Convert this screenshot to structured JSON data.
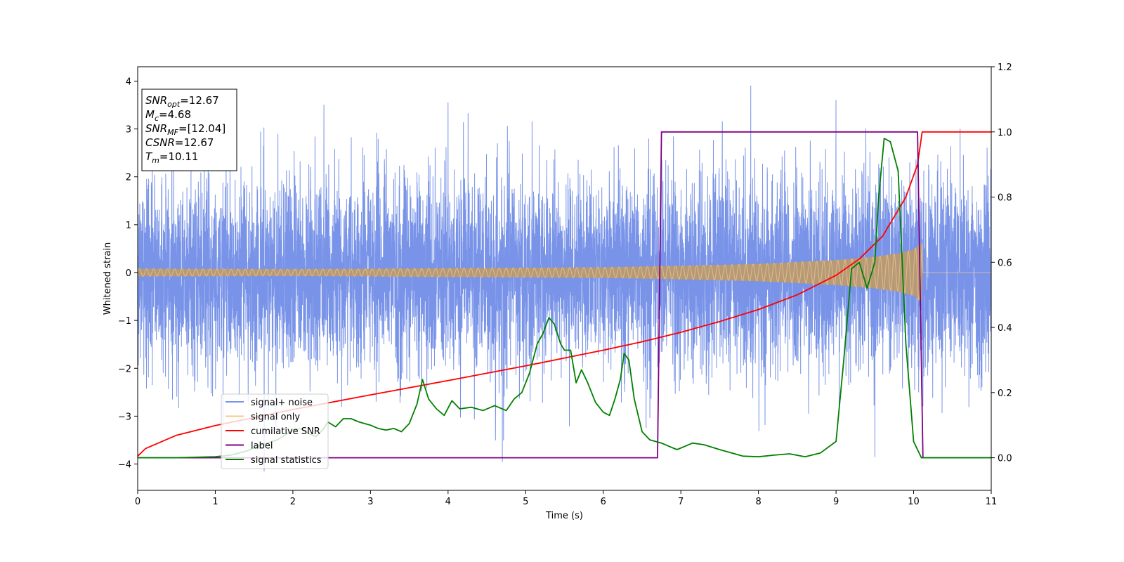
{
  "chart_data": {
    "type": "line",
    "xlabel": "Time (s)",
    "ylabel": "Whitened strain",
    "xlim": [
      0,
      11
    ],
    "ylim": [
      -4.55,
      4.3
    ],
    "y2lim": [
      -0.1,
      1.2
    ],
    "x_ticks": [
      0,
      1,
      2,
      3,
      4,
      5,
      6,
      7,
      8,
      9,
      10,
      11
    ],
    "y_ticks": [
      -4,
      -3,
      -2,
      -1,
      0,
      1,
      2,
      3,
      4
    ],
    "y2_ticks": [
      0.0,
      0.2,
      0.4,
      0.6,
      0.8,
      1.0,
      1.2
    ],
    "x_tick_labels": [
      "0",
      "1",
      "2",
      "3",
      "4",
      "5",
      "6",
      "7",
      "8",
      "9",
      "10",
      "11"
    ],
    "y_tick_labels": [
      "−4",
      "−3",
      "−2",
      "−1",
      "0",
      "1",
      "2",
      "3",
      "4"
    ],
    "y2_tick_labels": [
      "0.0",
      "0.2",
      "0.4",
      "0.6",
      "0.8",
      "1.0",
      "1.2"
    ],
    "grid": false,
    "legend_position": "lower-left",
    "info_box": [
      {
        "base": "SNR",
        "sub": "opt",
        "value": "=12.67"
      },
      {
        "base": "M",
        "sub": "c",
        "value": "=4.68"
      },
      {
        "base": "SNR",
        "sub": "MF",
        "value": "=[12.04]"
      },
      {
        "base": "CSNR",
        "sub": "",
        "value": "=12.67"
      },
      {
        "base": "T",
        "sub": "m",
        "value": "=10.11"
      }
    ],
    "series": [
      {
        "name": "signal+ noise",
        "color": "#7893e8",
        "axis": "left",
        "kind": "noise",
        "t_end": 11,
        "std": 1.0,
        "envelope_min": -3.5,
        "envelope_max": 3.6,
        "peak_points": [
          [
            1.1,
            -3.2
          ],
          [
            1.63,
            -4.15
          ],
          [
            2.4,
            3.5
          ],
          [
            4.0,
            3.55
          ],
          [
            4.7,
            -3.95
          ],
          [
            7.9,
            3.9
          ],
          [
            9.5,
            -3.85
          ],
          [
            10.6,
            3.0
          ]
        ]
      },
      {
        "name": "signal only",
        "color": "#f5c98a",
        "fill_color": "#b99a72",
        "axis": "left",
        "kind": "chirp",
        "amplitude_points": [
          [
            0,
            0.08
          ],
          [
            2,
            0.07
          ],
          [
            4,
            0.09
          ],
          [
            6,
            0.11
          ],
          [
            7,
            0.14
          ],
          [
            8,
            0.18
          ],
          [
            9,
            0.26
          ],
          [
            9.5,
            0.33
          ],
          [
            9.8,
            0.4
          ],
          [
            10,
            0.48
          ],
          [
            10.1,
            0.62
          ],
          [
            10.11,
            0.65
          ],
          [
            10.12,
            0.0
          ],
          [
            11,
            0.0
          ]
        ]
      },
      {
        "name": "cumilative SNR",
        "color": "#ff0000",
        "axis": "right",
        "points": [
          [
            0,
            0.005
          ],
          [
            0.1,
            0.028
          ],
          [
            0.5,
            0.069
          ],
          [
            1,
            0.099
          ],
          [
            2,
            0.148
          ],
          [
            3,
            0.193
          ],
          [
            4,
            0.237
          ],
          [
            5,
            0.282
          ],
          [
            6,
            0.33
          ],
          [
            6.5,
            0.356
          ],
          [
            7,
            0.385
          ],
          [
            7.5,
            0.418
          ],
          [
            8,
            0.455
          ],
          [
            8.5,
            0.5
          ],
          [
            9,
            0.56
          ],
          [
            9.3,
            0.61
          ],
          [
            9.6,
            0.68
          ],
          [
            9.9,
            0.8
          ],
          [
            10.05,
            0.9
          ],
          [
            10.11,
            1.0
          ],
          [
            11,
            1.0
          ]
        ]
      },
      {
        "name": "label",
        "color": "#800080",
        "axis": "right",
        "points": [
          [
            0,
            0
          ],
          [
            6.7,
            0
          ],
          [
            6.75,
            1
          ],
          [
            10.05,
            1
          ],
          [
            10.12,
            0
          ],
          [
            11,
            0
          ]
        ]
      },
      {
        "name": "signal statistics",
        "color": "#008000",
        "axis": "right",
        "points": [
          [
            0,
            0
          ],
          [
            0.5,
            0.0
          ],
          [
            1.0,
            0.003
          ],
          [
            1.2,
            0.008
          ],
          [
            1.4,
            0.02
          ],
          [
            1.6,
            0.04
          ],
          [
            1.8,
            0.055
          ],
          [
            2.0,
            0.085
          ],
          [
            2.1,
            0.09
          ],
          [
            2.2,
            0.075
          ],
          [
            2.3,
            0.065
          ],
          [
            2.4,
            0.09
          ],
          [
            2.45,
            0.11
          ],
          [
            2.55,
            0.095
          ],
          [
            2.65,
            0.12
          ],
          [
            2.75,
            0.12
          ],
          [
            2.85,
            0.11
          ],
          [
            3.0,
            0.1
          ],
          [
            3.1,
            0.09
          ],
          [
            3.2,
            0.085
          ],
          [
            3.3,
            0.09
          ],
          [
            3.4,
            0.08
          ],
          [
            3.5,
            0.105
          ],
          [
            3.6,
            0.165
          ],
          [
            3.67,
            0.24
          ],
          [
            3.75,
            0.18
          ],
          [
            3.85,
            0.15
          ],
          [
            3.95,
            0.13
          ],
          [
            4.05,
            0.175
          ],
          [
            4.15,
            0.15
          ],
          [
            4.3,
            0.155
          ],
          [
            4.45,
            0.145
          ],
          [
            4.6,
            0.16
          ],
          [
            4.75,
            0.145
          ],
          [
            4.85,
            0.18
          ],
          [
            4.95,
            0.2
          ],
          [
            5.05,
            0.26
          ],
          [
            5.15,
            0.35
          ],
          [
            5.22,
            0.38
          ],
          [
            5.3,
            0.43
          ],
          [
            5.37,
            0.41
          ],
          [
            5.45,
            0.35
          ],
          [
            5.5,
            0.33
          ],
          [
            5.58,
            0.33
          ],
          [
            5.65,
            0.23
          ],
          [
            5.72,
            0.27
          ],
          [
            5.8,
            0.23
          ],
          [
            5.9,
            0.17
          ],
          [
            6.0,
            0.14
          ],
          [
            6.08,
            0.13
          ],
          [
            6.15,
            0.18
          ],
          [
            6.22,
            0.24
          ],
          [
            6.27,
            0.32
          ],
          [
            6.33,
            0.3
          ],
          [
            6.4,
            0.18
          ],
          [
            6.5,
            0.08
          ],
          [
            6.6,
            0.055
          ],
          [
            6.75,
            0.045
          ],
          [
            6.85,
            0.035
          ],
          [
            6.95,
            0.025
          ],
          [
            7.05,
            0.035
          ],
          [
            7.15,
            0.045
          ],
          [
            7.3,
            0.04
          ],
          [
            7.5,
            0.025
          ],
          [
            7.8,
            0.005
          ],
          [
            8.0,
            0.003
          ],
          [
            8.2,
            0.008
          ],
          [
            8.4,
            0.012
          ],
          [
            8.6,
            0.003
          ],
          [
            8.8,
            0.015
          ],
          [
            9.0,
            0.05
          ],
          [
            9.1,
            0.3
          ],
          [
            9.2,
            0.58
          ],
          [
            9.3,
            0.6
          ],
          [
            9.4,
            0.52
          ],
          [
            9.5,
            0.6
          ],
          [
            9.55,
            0.8
          ],
          [
            9.62,
            0.98
          ],
          [
            9.7,
            0.97
          ],
          [
            9.8,
            0.88
          ],
          [
            9.9,
            0.35
          ],
          [
            10.0,
            0.05
          ],
          [
            10.1,
            0.0
          ],
          [
            11,
            0.0
          ]
        ]
      }
    ]
  }
}
